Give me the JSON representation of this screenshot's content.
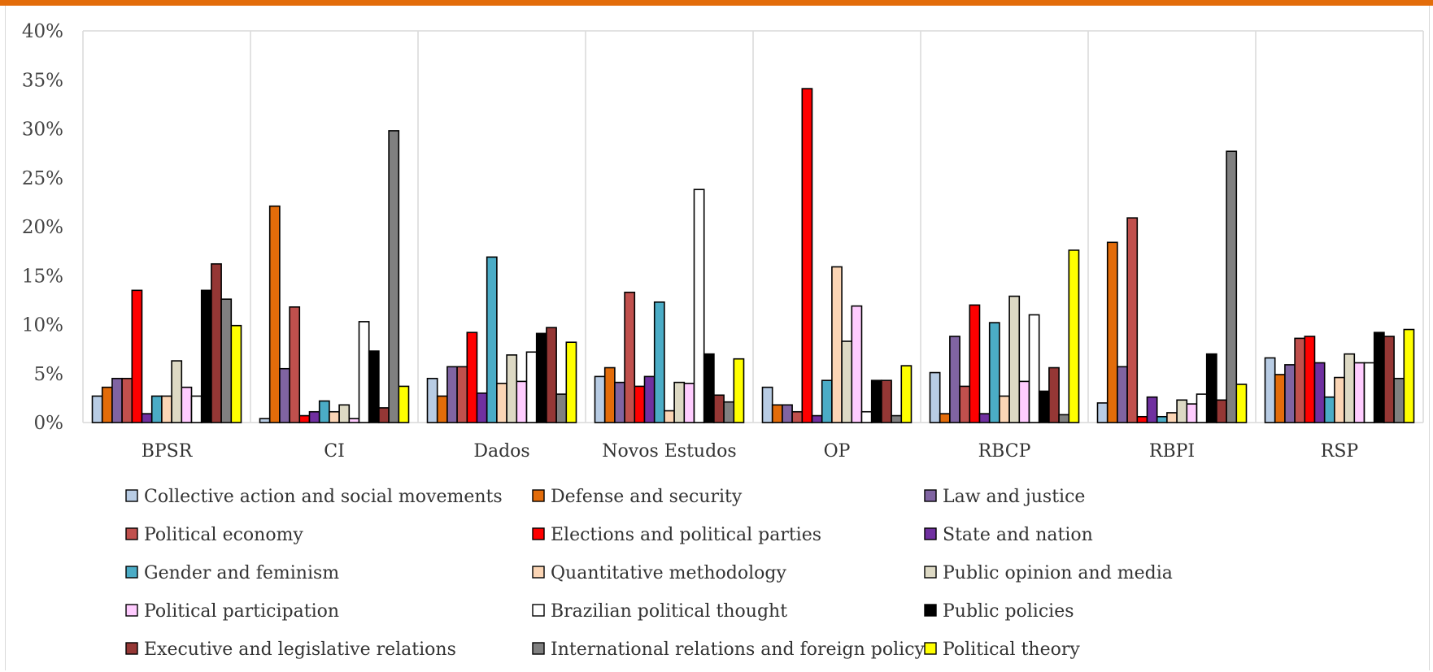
{
  "chart_data": {
    "type": "bar",
    "title": "",
    "xlabel": "",
    "ylabel": "",
    "ylim": [
      0,
      40
    ],
    "y_ticks": [
      "0%",
      "5%",
      "10%",
      "15%",
      "20%",
      "25%",
      "30%",
      "35%",
      "40%"
    ],
    "grid": "vertical separators between categories, top border",
    "legend_position": "bottom",
    "categories": [
      "BPSR",
      "CI",
      "Dados",
      "Novos Estudos",
      "OP",
      "RBCP",
      "RBPI",
      "RSP"
    ],
    "series": [
      {
        "name": "Collective action and social movements",
        "color": "#B8CCE4",
        "values": [
          2.7,
          0.4,
          4.5,
          4.7,
          3.6,
          5.1,
          2.0,
          6.6
        ]
      },
      {
        "name": "Defense and security",
        "color": "#E36C0A",
        "values": [
          3.6,
          22.1,
          2.7,
          5.6,
          1.8,
          0.9,
          18.4,
          4.9
        ]
      },
      {
        "name": "Law and justice",
        "color": "#8064A2",
        "values": [
          4.5,
          5.5,
          5.7,
          4.1,
          1.8,
          8.8,
          5.7,
          5.9
        ]
      },
      {
        "name": "Political economy",
        "color": "#C0504D",
        "values": [
          4.5,
          11.8,
          5.7,
          13.3,
          1.1,
          3.7,
          20.9,
          8.6
        ]
      },
      {
        "name": "Elections and political parties",
        "color": "#FF0000",
        "values": [
          13.5,
          0.7,
          9.2,
          3.7,
          34.1,
          12.0,
          0.6,
          8.8
        ]
      },
      {
        "name": "State and nation",
        "color": "#7030A0",
        "values": [
          0.9,
          1.1,
          3.0,
          4.7,
          0.7,
          0.9,
          2.6,
          6.1
        ]
      },
      {
        "name": "Gender and feminism",
        "color": "#4BACC6",
        "values": [
          2.7,
          2.2,
          16.9,
          12.3,
          4.3,
          10.2,
          0.6,
          2.6
        ]
      },
      {
        "name": "Quantitative methodology",
        "color": "#FBD5B5",
        "values": [
          2.7,
          1.1,
          4.0,
          1.2,
          15.9,
          2.7,
          1.0,
          4.6
        ]
      },
      {
        "name": "Public opinion and media",
        "color": "#DDD9C4",
        "values": [
          6.3,
          1.8,
          6.9,
          4.1,
          8.3,
          12.9,
          2.3,
          7.0
        ]
      },
      {
        "name": "Political participation",
        "color": "#FFCCFF",
        "values": [
          3.6,
          0.4,
          4.2,
          4.0,
          11.9,
          4.2,
          1.9,
          6.1
        ]
      },
      {
        "name": "Brazilian political thought",
        "color": "#FFFFFF",
        "values": [
          2.7,
          10.3,
          7.2,
          23.8,
          1.1,
          11.0,
          2.9,
          6.1
        ]
      },
      {
        "name": "Public policies",
        "color": "#000000",
        "values": [
          13.5,
          7.3,
          9.1,
          7.0,
          4.3,
          3.2,
          7.0,
          9.2
        ]
      },
      {
        "name": "Executive and legislative relations",
        "color": "#953735",
        "values": [
          16.2,
          1.5,
          9.7,
          2.8,
          4.3,
          5.6,
          2.3,
          8.8
        ]
      },
      {
        "name": "International relations and foreign policy",
        "color": "#808080",
        "values": [
          12.6,
          29.8,
          2.9,
          2.1,
          0.7,
          0.8,
          27.7,
          4.5
        ]
      },
      {
        "name": "Political theory",
        "color": "#FFFF00",
        "values": [
          9.9,
          3.7,
          8.2,
          6.5,
          5.8,
          17.6,
          3.9,
          9.5
        ]
      }
    ]
  },
  "colors": {
    "top_rule": "#E36C0A",
    "grid": "#d9d9d9",
    "bar_outline": "#000000"
  }
}
